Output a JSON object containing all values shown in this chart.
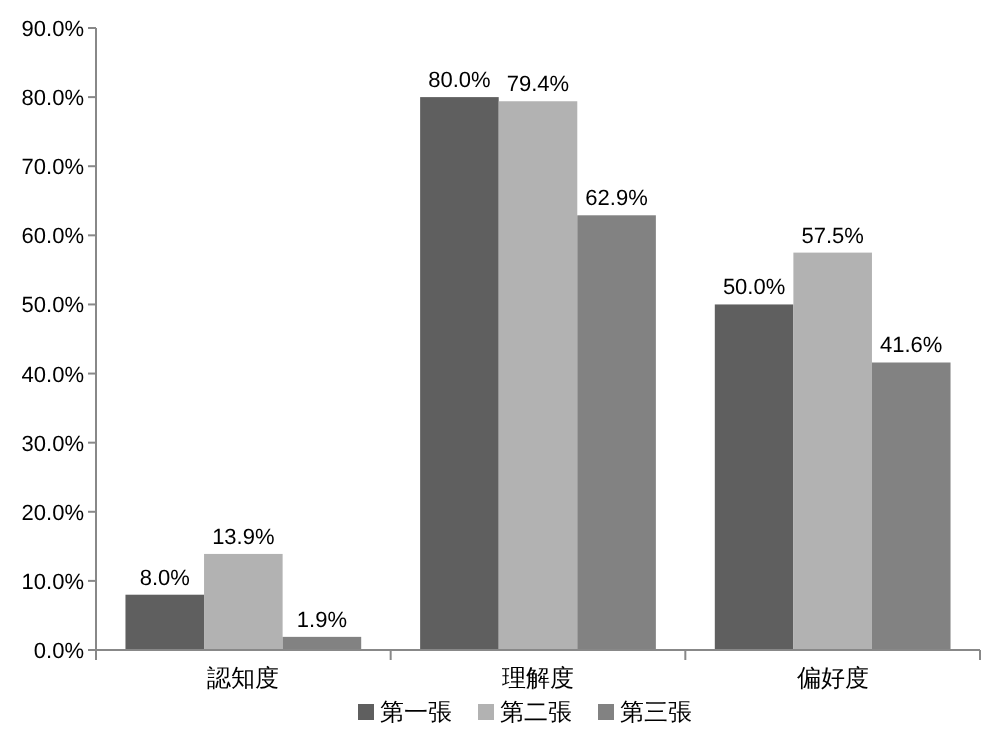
{
  "chart_data": {
    "type": "bar",
    "categories": [
      "認知度",
      "理解度",
      "偏好度"
    ],
    "series": [
      {
        "name": "第一張",
        "color": "#5f5f5f",
        "values": [
          8.0,
          80.0,
          50.0
        ],
        "value_labels": [
          "8.0%",
          "80.0%",
          "50.0%"
        ]
      },
      {
        "name": "第二張",
        "color": "#b2b2b2",
        "values": [
          13.9,
          79.4,
          57.5
        ],
        "value_labels": [
          "13.9%",
          "79.4%",
          "57.5%"
        ]
      },
      {
        "name": "第三張",
        "color": "#828282",
        "values": [
          1.9,
          62.9,
          41.6
        ],
        "value_labels": [
          "1.9%",
          "62.9%",
          "41.6%"
        ]
      }
    ],
    "ylim": [
      0,
      90
    ],
    "yticks": [
      {
        "value": 0,
        "label": "0.0%"
      },
      {
        "value": 10,
        "label": "10.0%"
      },
      {
        "value": 20,
        "label": "20.0%"
      },
      {
        "value": 30,
        "label": "30.0%"
      },
      {
        "value": 40,
        "label": "40.0%"
      },
      {
        "value": 50,
        "label": "50.0%"
      },
      {
        "value": 60,
        "label": "60.0%"
      },
      {
        "value": 70,
        "label": "70.0%"
      },
      {
        "value": 80,
        "label": "80.0%"
      },
      {
        "value": 90,
        "label": "90.0%"
      }
    ],
    "grid": false,
    "legend": "bottom"
  }
}
